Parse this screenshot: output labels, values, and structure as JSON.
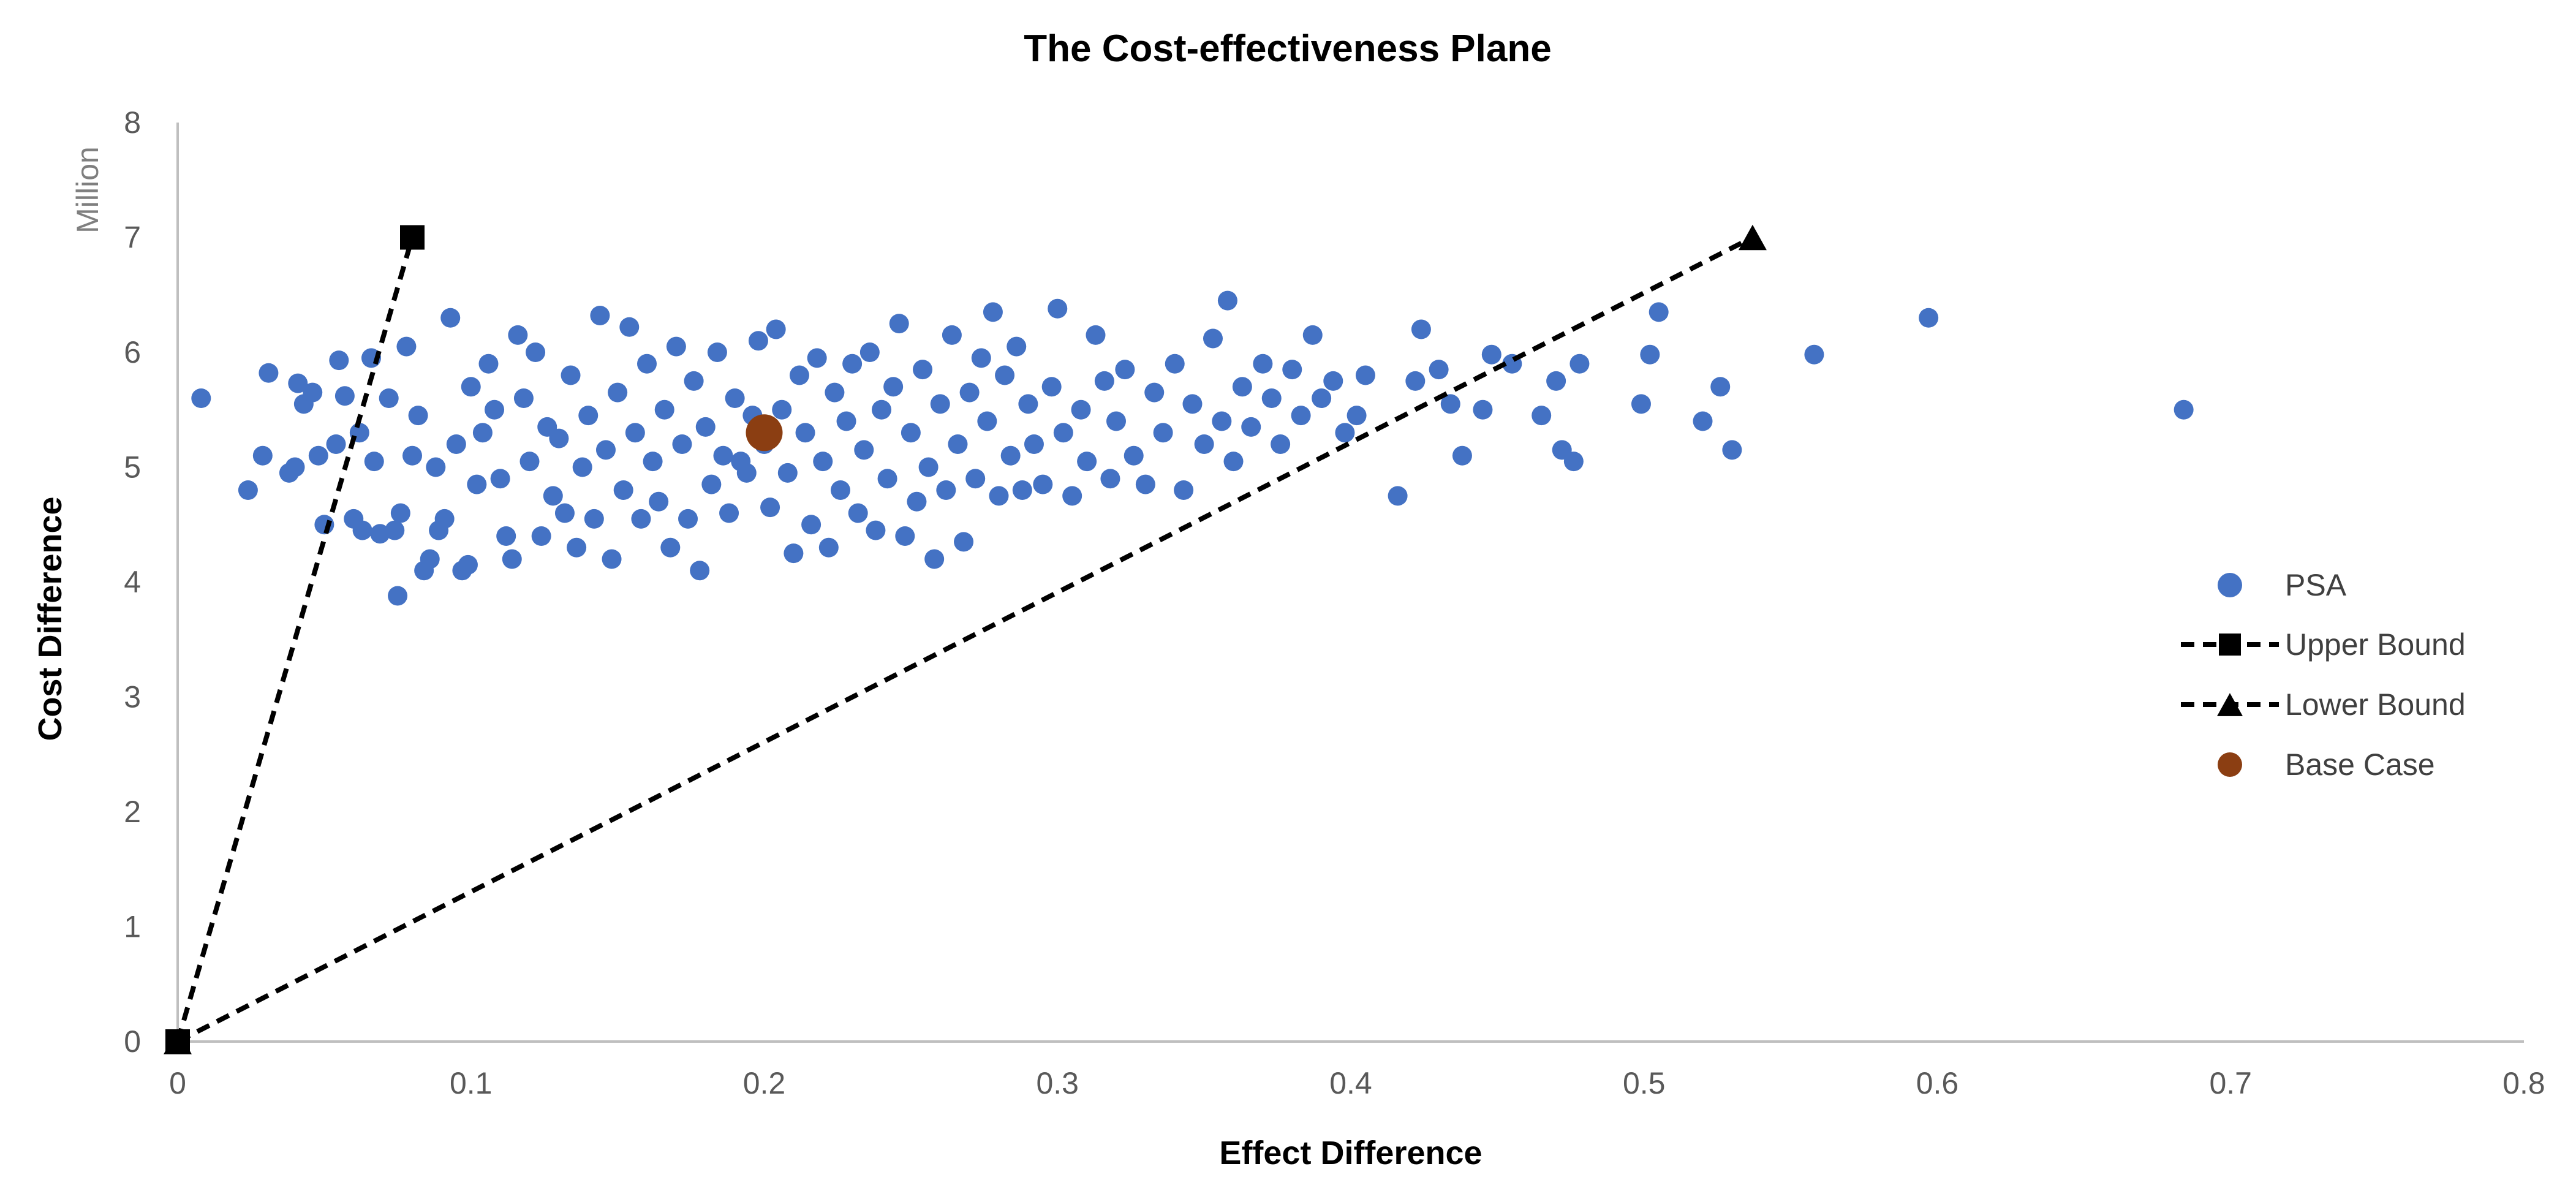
{
  "chart_data": {
    "type": "scatter",
    "title": "The Cost-effectiveness Plane",
    "xlabel": "Effect Difference",
    "ylabel": "Cost Difference",
    "y_unit_label": "Million",
    "xlim": [
      0,
      0.8
    ],
    "ylim": [
      0,
      8
    ],
    "x_ticks": [
      "0",
      "0.1",
      "0.2",
      "0.3",
      "0.4",
      "0.5",
      "0.6",
      "0.7",
      "0.8"
    ],
    "y_ticks": [
      "0",
      "1",
      "2",
      "3",
      "4",
      "5",
      "6",
      "7",
      "8"
    ],
    "grid": false,
    "legend_position": "right",
    "colors": {
      "psa": "#4472c4",
      "base_case": "#8b3e12",
      "bounds": "#000000",
      "axis": "#bfbfbf"
    },
    "series": [
      {
        "name": "PSA",
        "kind": "scatter",
        "points": [
          [
            0.008,
            5.6
          ],
          [
            0.024,
            4.8
          ],
          [
            0.029,
            5.1
          ],
          [
            0.031,
            5.82
          ],
          [
            0.038,
            4.95
          ],
          [
            0.04,
            5.0
          ],
          [
            0.041,
            5.73
          ],
          [
            0.043,
            5.55
          ],
          [
            0.046,
            5.65
          ],
          [
            0.048,
            5.1
          ],
          [
            0.05,
            4.5
          ],
          [
            0.054,
            5.2
          ],
          [
            0.055,
            5.93
          ],
          [
            0.057,
            5.62
          ],
          [
            0.06,
            4.55
          ],
          [
            0.062,
            5.3
          ],
          [
            0.063,
            4.45
          ],
          [
            0.066,
            5.95
          ],
          [
            0.067,
            5.05
          ],
          [
            0.069,
            4.42
          ],
          [
            0.072,
            5.6
          ],
          [
            0.074,
            4.45
          ],
          [
            0.075,
            3.88
          ],
          [
            0.076,
            4.6
          ],
          [
            0.078,
            6.05
          ],
          [
            0.08,
            5.1
          ],
          [
            0.082,
            5.45
          ],
          [
            0.084,
            4.1
          ],
          [
            0.086,
            4.2
          ],
          [
            0.088,
            5.0
          ],
          [
            0.089,
            4.45
          ],
          [
            0.091,
            4.55
          ],
          [
            0.093,
            6.3
          ],
          [
            0.095,
            5.2
          ],
          [
            0.097,
            4.1
          ],
          [
            0.099,
            4.15
          ],
          [
            0.1,
            5.7
          ],
          [
            0.102,
            4.85
          ],
          [
            0.104,
            5.3
          ],
          [
            0.106,
            5.9
          ],
          [
            0.108,
            5.5
          ],
          [
            0.11,
            4.9
          ],
          [
            0.112,
            4.4
          ],
          [
            0.114,
            4.2
          ],
          [
            0.116,
            6.15
          ],
          [
            0.118,
            5.6
          ],
          [
            0.12,
            5.05
          ],
          [
            0.122,
            6.0
          ],
          [
            0.124,
            4.4
          ],
          [
            0.126,
            5.35
          ],
          [
            0.128,
            4.75
          ],
          [
            0.13,
            5.25
          ],
          [
            0.132,
            4.6
          ],
          [
            0.134,
            5.8
          ],
          [
            0.136,
            4.3
          ],
          [
            0.138,
            5.0
          ],
          [
            0.14,
            5.45
          ],
          [
            0.142,
            4.55
          ],
          [
            0.144,
            6.32
          ],
          [
            0.146,
            5.15
          ],
          [
            0.148,
            4.2
          ],
          [
            0.15,
            5.65
          ],
          [
            0.152,
            4.8
          ],
          [
            0.154,
            6.22
          ],
          [
            0.156,
            5.3
          ],
          [
            0.158,
            4.55
          ],
          [
            0.16,
            5.9
          ],
          [
            0.162,
            5.05
          ],
          [
            0.164,
            4.7
          ],
          [
            0.166,
            5.5
          ],
          [
            0.168,
            4.3
          ],
          [
            0.17,
            6.05
          ],
          [
            0.172,
            5.2
          ],
          [
            0.174,
            4.55
          ],
          [
            0.176,
            5.75
          ],
          [
            0.178,
            4.1
          ],
          [
            0.18,
            5.35
          ],
          [
            0.182,
            4.85
          ],
          [
            0.184,
            6.0
          ],
          [
            0.186,
            5.1
          ],
          [
            0.188,
            4.6
          ],
          [
            0.19,
            5.6
          ],
          [
            0.192,
            5.05
          ],
          [
            0.194,
            4.95
          ],
          [
            0.196,
            5.45
          ],
          [
            0.198,
            6.1
          ],
          [
            0.2,
            5.2
          ],
          [
            0.202,
            4.65
          ],
          [
            0.204,
            6.2
          ],
          [
            0.206,
            5.5
          ],
          [
            0.208,
            4.95
          ],
          [
            0.21,
            4.25
          ],
          [
            0.212,
            5.8
          ],
          [
            0.214,
            5.3
          ],
          [
            0.216,
            4.5
          ],
          [
            0.218,
            5.95
          ],
          [
            0.22,
            5.05
          ],
          [
            0.222,
            4.3
          ],
          [
            0.224,
            5.65
          ],
          [
            0.226,
            4.8
          ],
          [
            0.228,
            5.4
          ],
          [
            0.23,
            5.9
          ],
          [
            0.232,
            4.6
          ],
          [
            0.234,
            5.15
          ],
          [
            0.236,
            6.0
          ],
          [
            0.238,
            4.45
          ],
          [
            0.24,
            5.5
          ],
          [
            0.242,
            4.9
          ],
          [
            0.244,
            5.7
          ],
          [
            0.246,
            6.25
          ],
          [
            0.248,
            4.4
          ],
          [
            0.25,
            5.3
          ],
          [
            0.252,
            4.7
          ],
          [
            0.254,
            5.85
          ],
          [
            0.256,
            5.0
          ],
          [
            0.258,
            4.2
          ],
          [
            0.26,
            5.55
          ],
          [
            0.262,
            4.8
          ],
          [
            0.264,
            6.15
          ],
          [
            0.266,
            5.2
          ],
          [
            0.268,
            4.35
          ],
          [
            0.27,
            5.65
          ],
          [
            0.272,
            4.9
          ],
          [
            0.274,
            5.95
          ],
          [
            0.276,
            5.4
          ],
          [
            0.278,
            6.35
          ],
          [
            0.28,
            4.75
          ],
          [
            0.282,
            5.8
          ],
          [
            0.284,
            5.1
          ],
          [
            0.286,
            6.05
          ],
          [
            0.288,
            4.8
          ],
          [
            0.29,
            5.55
          ],
          [
            0.292,
            5.2
          ],
          [
            0.295,
            4.85
          ],
          [
            0.298,
            5.7
          ],
          [
            0.3,
            6.38
          ],
          [
            0.302,
            5.3
          ],
          [
            0.305,
            4.75
          ],
          [
            0.308,
            5.5
          ],
          [
            0.31,
            5.05
          ],
          [
            0.313,
            6.15
          ],
          [
            0.316,
            5.75
          ],
          [
            0.318,
            4.9
          ],
          [
            0.32,
            5.4
          ],
          [
            0.323,
            5.85
          ],
          [
            0.326,
            5.1
          ],
          [
            0.33,
            4.85
          ],
          [
            0.333,
            5.65
          ],
          [
            0.336,
            5.3
          ],
          [
            0.34,
            5.9
          ],
          [
            0.343,
            4.8
          ],
          [
            0.346,
            5.55
          ],
          [
            0.35,
            5.2
          ],
          [
            0.353,
            6.12
          ],
          [
            0.356,
            5.4
          ],
          [
            0.358,
            6.45
          ],
          [
            0.36,
            5.05
          ],
          [
            0.363,
            5.7
          ],
          [
            0.366,
            5.35
          ],
          [
            0.37,
            5.9
          ],
          [
            0.373,
            5.6
          ],
          [
            0.376,
            5.2
          ],
          [
            0.38,
            5.85
          ],
          [
            0.383,
            5.45
          ],
          [
            0.387,
            6.15
          ],
          [
            0.39,
            5.6
          ],
          [
            0.394,
            5.75
          ],
          [
            0.398,
            5.3
          ],
          [
            0.402,
            5.45
          ],
          [
            0.405,
            5.8
          ],
          [
            0.416,
            4.75
          ],
          [
            0.422,
            5.75
          ],
          [
            0.424,
            6.2
          ],
          [
            0.43,
            5.85
          ],
          [
            0.434,
            5.55
          ],
          [
            0.438,
            5.1
          ],
          [
            0.445,
            5.5
          ],
          [
            0.448,
            5.98
          ],
          [
            0.455,
            5.9
          ],
          [
            0.465,
            5.45
          ],
          [
            0.47,
            5.75
          ],
          [
            0.472,
            5.15
          ],
          [
            0.476,
            5.05
          ],
          [
            0.478,
            5.9
          ],
          [
            0.499,
            5.55
          ],
          [
            0.502,
            5.98
          ],
          [
            0.505,
            6.35
          ],
          [
            0.52,
            5.4
          ],
          [
            0.526,
            5.7
          ],
          [
            0.53,
            5.15
          ],
          [
            0.558,
            5.98
          ],
          [
            0.597,
            6.3
          ],
          [
            0.684,
            5.5
          ]
        ]
      },
      {
        "name": "Upper Bound",
        "kind": "line",
        "style": "dashed",
        "marker": "square",
        "points": [
          [
            0,
            0
          ],
          [
            0.08,
            7
          ]
        ]
      },
      {
        "name": "Lower Bound",
        "kind": "line",
        "style": "dashed",
        "marker": "triangle",
        "points": [
          [
            0,
            0
          ],
          [
            0.537,
            7
          ]
        ]
      },
      {
        "name": "Base Case",
        "kind": "scatter",
        "points": [
          [
            0.2,
            5.3
          ]
        ]
      }
    ],
    "legend": [
      {
        "label": "PSA",
        "symbol": "circle",
        "color_key": "psa"
      },
      {
        "label": "Upper Bound",
        "symbol": "dashed-square",
        "color_key": "bounds"
      },
      {
        "label": "Lower Bound",
        "symbol": "dashed-triangle",
        "color_key": "bounds"
      },
      {
        "label": "Base Case",
        "symbol": "circle",
        "color_key": "base_case"
      }
    ]
  }
}
